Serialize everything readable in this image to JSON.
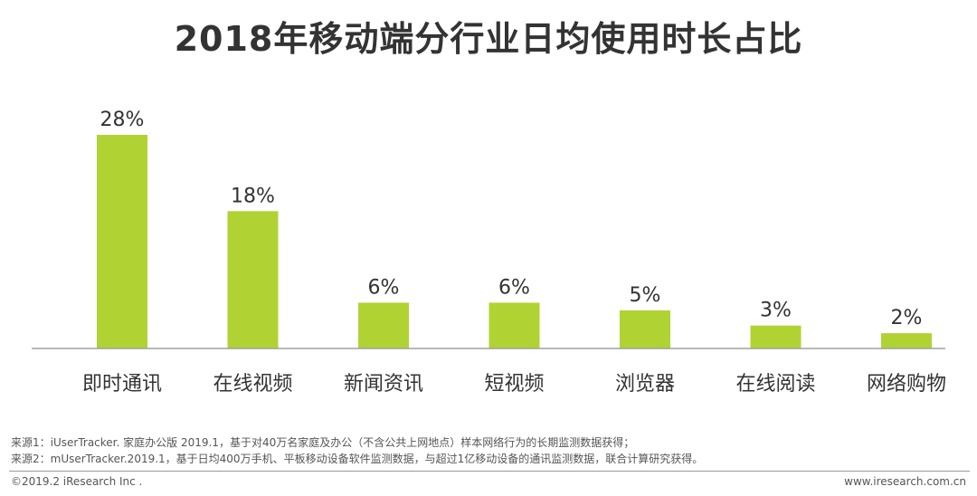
{
  "title": "2018年移动端分行业日均使用时长占比",
  "chart_data": {
    "type": "bar",
    "categories": [
      "即时通讯",
      "在线视频",
      "新闻资讯",
      "短视频",
      "浏览器",
      "在线阅读",
      "网络购物"
    ],
    "values": [
      28,
      18,
      6,
      6,
      5,
      3,
      2
    ],
    "value_labels": [
      "28%",
      "18%",
      "6%",
      "6%",
      "5%",
      "3%",
      "2%"
    ],
    "unit": "%",
    "grid": false,
    "legend": "none",
    "bar_color": "#b0d333"
  },
  "sources": [
    "来源1：iUserTracker. 家庭办公版 2019.1，基于对40万名家庭及办公（不含公共上网地点）样本网络行为的长期监测数据获得；",
    "来源2：mUserTracker.2019.1，基于日均400万手机、平板移动设备软件监测数据，与超过1亿移动设备的通讯监测数据，联合计算研究获得。"
  ],
  "footer": {
    "copyright": "©2019.2 iResearch Inc .",
    "website": "www.iresearch.com.cn"
  }
}
